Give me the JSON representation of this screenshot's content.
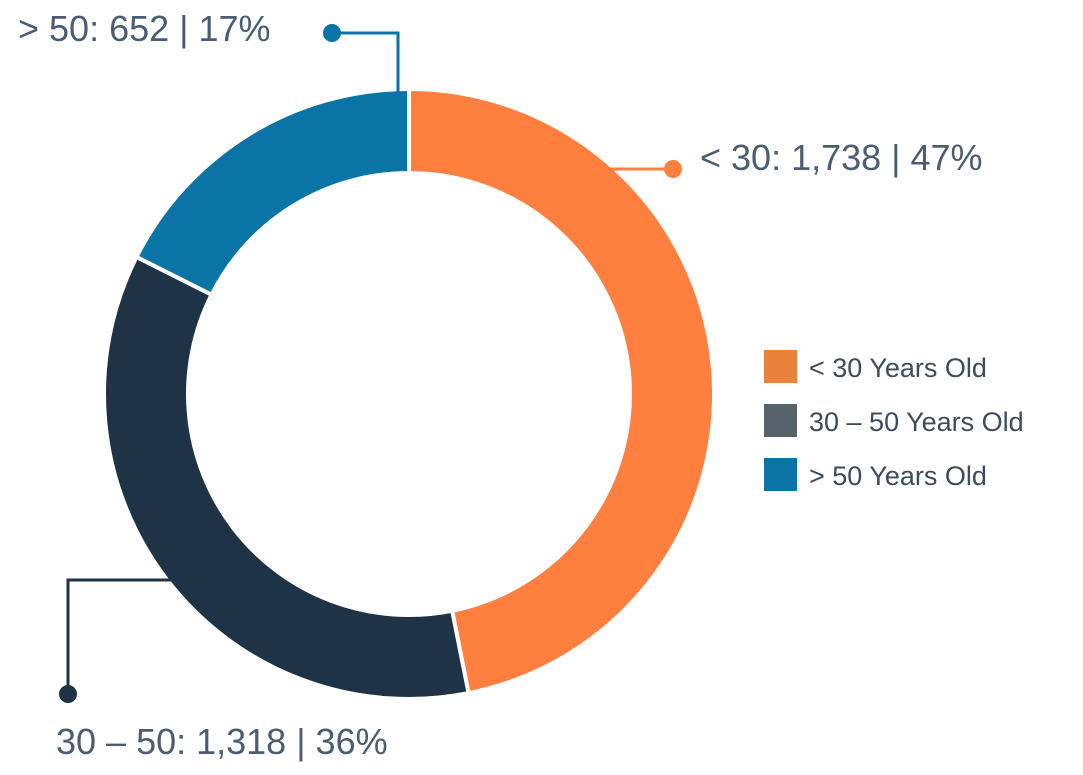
{
  "chart_data": {
    "type": "pie",
    "variant": "donut",
    "title": "",
    "slices": [
      {
        "label": "< 30 Years Old",
        "value": 1738,
        "percent": 47,
        "color": "#ff7f3f",
        "legend_color": "#e8823a",
        "callout": "< 30: 1,738 | 47%"
      },
      {
        "label": "30 – 50 Years Old",
        "value": 1318,
        "percent": 36,
        "color": "#1f3347",
        "legend_color": "#56636b",
        "callout": "30 – 50: 1,318 | 36%"
      },
      {
        "label": "> 50 Years Old",
        "value": 652,
        "percent": 17,
        "color": "#0a74a6",
        "legend_color": "#0a74a6",
        "callout": "> 50: 652 | 17%"
      }
    ],
    "legend_position": "right"
  }
}
